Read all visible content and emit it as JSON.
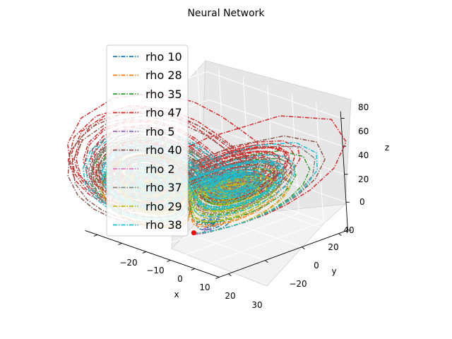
{
  "chart_data": {
    "type": "line",
    "projection": "3d",
    "title": "Neural Network",
    "xlabel": "x",
    "ylabel": "y",
    "zlabel": "z",
    "xlim": [
      -25,
      30
    ],
    "ylim": [
      -25,
      45
    ],
    "zlim": [
      0,
      85
    ],
    "x_ticks": [
      -20,
      -10,
      0,
      10,
      20,
      30
    ],
    "y_ticks": [
      -20,
      0,
      20,
      40
    ],
    "z_ticks": [
      0,
      20,
      40,
      60,
      80
    ],
    "x_tick_labels": [
      "−20",
      "−10",
      "0",
      "10",
      "20",
      "30"
    ],
    "y_tick_labels": [
      "−20",
      "0",
      "20",
      "40"
    ],
    "z_tick_labels": [
      "0",
      "20",
      "40",
      "60",
      "80"
    ],
    "grid": true,
    "legend_position": "upper-left",
    "line_style": "dash-dot",
    "series": [
      {
        "name": "rho 10",
        "rho": 10,
        "color": "#1f77b4"
      },
      {
        "name": "rho 28",
        "rho": 28,
        "color": "#ff7f0e"
      },
      {
        "name": "rho 35",
        "rho": 35,
        "color": "#2ca02c"
      },
      {
        "name": "rho 47",
        "rho": 47,
        "color": "#d62728"
      },
      {
        "name": "rho 5",
        "rho": 5,
        "color": "#9467bd"
      },
      {
        "name": "rho 40",
        "rho": 40,
        "color": "#8c564b"
      },
      {
        "name": "rho 2",
        "rho": 2,
        "color": "#e377c2"
      },
      {
        "name": "rho 37",
        "rho": 37,
        "color": "#7f7f7f"
      },
      {
        "name": "rho 29",
        "rho": 29,
        "color": "#bcbd22"
      },
      {
        "name": "rho 38",
        "rho": 38,
        "color": "#17becf"
      }
    ],
    "marker": {
      "x": 0,
      "y": 1,
      "z": 1.05,
      "color": "#ff0000"
    }
  }
}
